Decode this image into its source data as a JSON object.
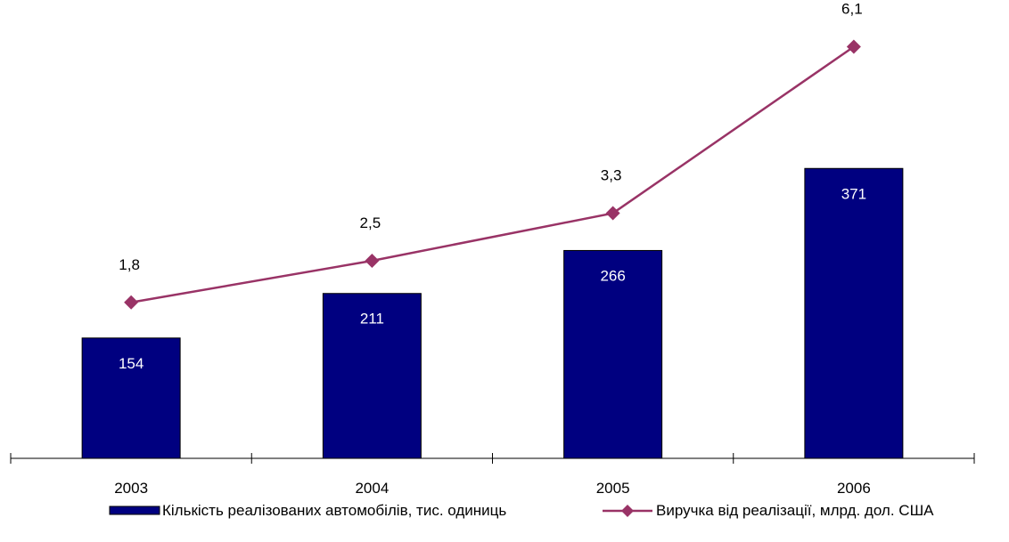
{
  "chart_data": {
    "type": "bar",
    "categories": [
      "2003",
      "2004",
      "2005",
      "2006"
    ],
    "series": [
      {
        "name": "Кількість реалізованих автомобілів, тис. одиниць",
        "type": "bar",
        "values": [
          154,
          211,
          266,
          371
        ],
        "labels": [
          "154",
          "211",
          "266",
          "371"
        ],
        "color": "#000080"
      },
      {
        "name": "Виручка від реалізації, млрд. дол. США",
        "type": "line",
        "marker": "diamond",
        "values": [
          1.8,
          2.5,
          3.3,
          6.1
        ],
        "labels": [
          "1,8",
          "2,5",
          "3,3",
          "6,1"
        ],
        "color": "#993366"
      }
    ],
    "title": "",
    "xlabel": "",
    "ylabel": "",
    "legend": "bottom",
    "grid": false
  }
}
